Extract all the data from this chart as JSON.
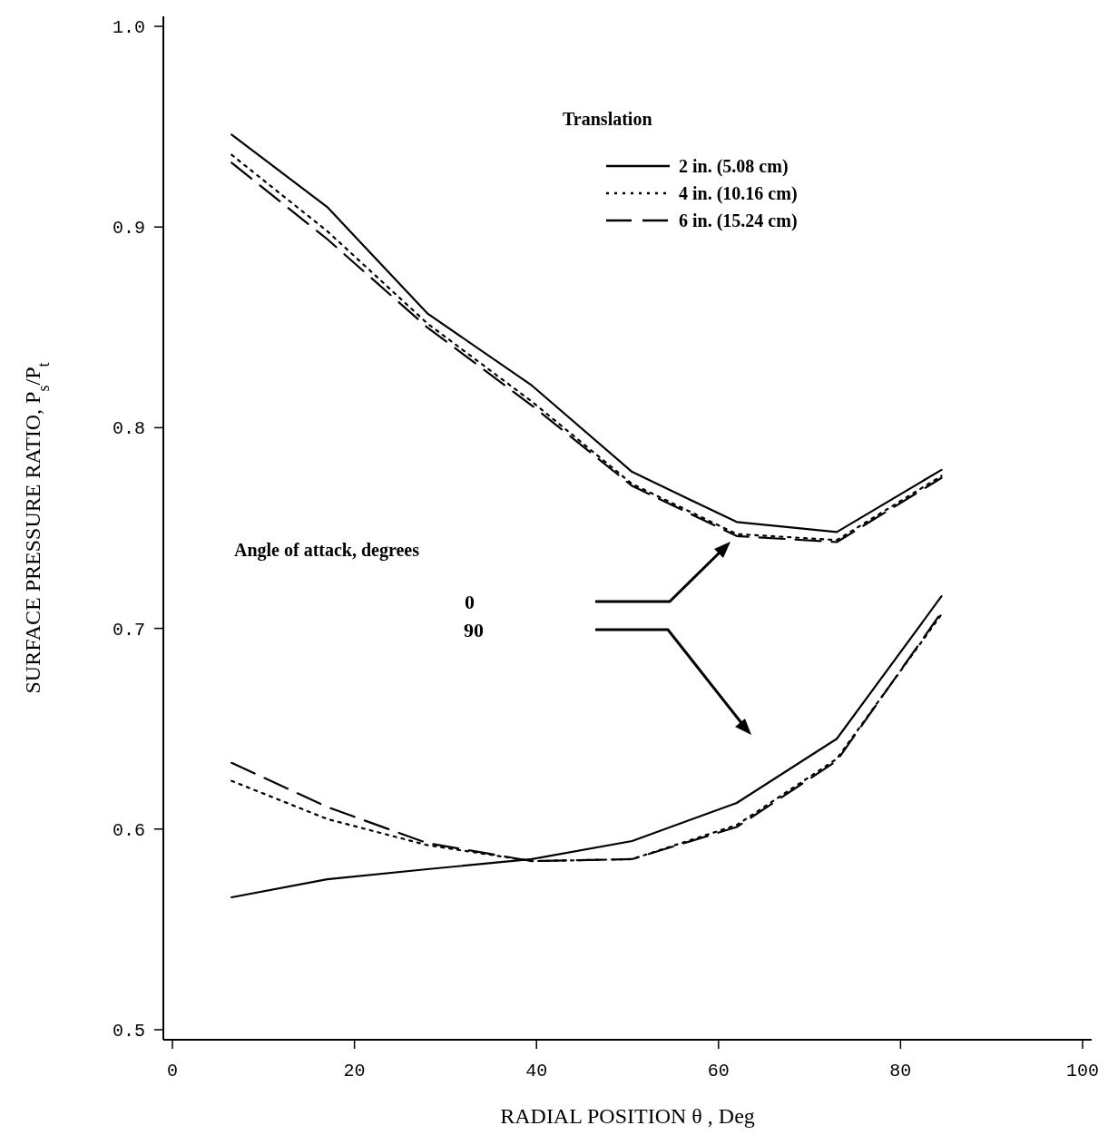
{
  "chart_data": {
    "type": "line",
    "xlabel": "RADIAL POSITION  θ  , Deg",
    "ylabel": "SURFACE PRESSURE RATIO, P$_{s}$/P$_{t}$",
    "legend_title": "Translation",
    "legend": "top right",
    "xlim": [
      -1,
      101
    ],
    "ylim": [
      0.495,
      1.005
    ],
    "xticks": [
      0,
      20,
      40,
      60,
      80,
      100
    ],
    "yticks": [
      0.5,
      0.6,
      0.7,
      0.8,
      0.9,
      {
        "value": 1,
        "label": "1.0"
      }
    ],
    "grid": false,
    "marker": "none",
    "x": [
      6.5,
      17,
      28,
      39.5,
      50.5,
      62,
      73,
      84.5
    ],
    "series": [
      {
        "name": "2 in. (5.08 cm)",
        "color": "#000000",
        "line_style": "solid",
        "values": [
          0.946,
          0.91,
          0.857,
          0.821,
          0.778,
          0.753,
          0.748,
          0.779
        ]
      },
      {
        "name": "4 in. (10.16 cm)",
        "color": "#000000",
        "line_style": "dotted",
        "values": [
          0.936,
          0.898,
          0.852,
          0.813,
          0.772,
          0.747,
          0.744,
          0.776
        ]
      },
      {
        "name": "6 in. (15.24 cm)",
        "color": "#000000",
        "line_style": "dashed",
        "values": [
          0.932,
          0.894,
          0.85,
          0.811,
          0.771,
          0.746,
          0.743,
          0.775
        ]
      },
      {
        "color": "#000000",
        "line_style": "solid",
        "values": [
          0.566,
          0.575,
          0.58,
          0.585,
          0.594,
          0.613,
          0.645,
          0.716
        ]
      },
      {
        "color": "#000000",
        "line_style": "dotted",
        "values": [
          0.624,
          0.605,
          0.592,
          0.584,
          0.585,
          0.602,
          0.635,
          0.707
        ]
      },
      {
        "color": "#000000",
        "line_style": "dashed",
        "values": [
          0.633,
          0.611,
          0.593,
          0.584,
          0.585,
          0.601,
          0.634,
          0.708
        ]
      }
    ],
    "annotations": [
      "Angle of attack, degrees",
      "0",
      "90"
    ]
  }
}
